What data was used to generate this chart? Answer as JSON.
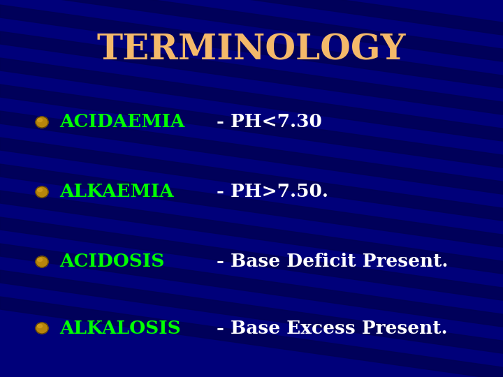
{
  "title": "TERMINOLOGY",
  "title_color": "#F4B96A",
  "title_fontsize": 36,
  "bg_color": "#00007A",
  "stripe_color": "#000055",
  "items": [
    {
      "term": "ACIDAEMIA",
      "definition": "- PH<7.30",
      "term_color": "#00FF00",
      "def_color": "#FFFFFF"
    },
    {
      "term": "ALKAEMIA",
      "definition": "- PH>7.50.",
      "term_color": "#00FF00",
      "def_color": "#FFFFFF"
    },
    {
      "term": "ACIDOSIS",
      "definition": "- Base Deficit Present.",
      "term_color": "#00FF00",
      "def_color": "#FFFFFF"
    },
    {
      "term": "ALKALOSIS",
      "definition": "- Base Excess Present.",
      "term_color": "#00FF00",
      "def_color": "#FFFFFF"
    }
  ],
  "bullet_color": "#B8860B",
  "term_fontsize": 19,
  "def_fontsize": 19,
  "figsize": [
    7.2,
    5.4
  ],
  "dpi": 100,
  "stripe_angles": [
    -8
  ],
  "num_stripes": 14
}
